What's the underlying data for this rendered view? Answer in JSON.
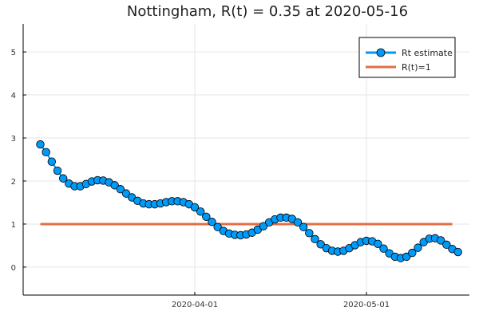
{
  "chart_data": {
    "type": "line",
    "title": "Nottingham, R(t) = 0.35 at 2020-05-16",
    "xlabel": "",
    "ylabel": "",
    "x_start": "2020-03-05",
    "x_end": "2020-05-16",
    "xlim": [
      "2020-03-02",
      "2020-05-19"
    ],
    "ylim": [
      -0.65,
      5.65
    ],
    "yticks": [
      0,
      1,
      2,
      3,
      4,
      5
    ],
    "xticks": [
      "2020-04-01",
      "2020-05-01"
    ],
    "grid": true,
    "legend_position": "top-right",
    "series": [
      {
        "name": "Rt estimate",
        "color": "#009AF9",
        "marker": "circle",
        "values": [
          2.85,
          2.67,
          2.45,
          2.24,
          2.06,
          1.94,
          1.88,
          1.88,
          1.93,
          1.99,
          2.02,
          2.01,
          1.97,
          1.9,
          1.81,
          1.71,
          1.62,
          1.54,
          1.48,
          1.46,
          1.46,
          1.48,
          1.51,
          1.53,
          1.53,
          1.51,
          1.46,
          1.39,
          1.29,
          1.17,
          1.05,
          0.93,
          0.84,
          0.78,
          0.75,
          0.74,
          0.76,
          0.8,
          0.87,
          0.95,
          1.04,
          1.11,
          1.15,
          1.15,
          1.12,
          1.04,
          0.93,
          0.79,
          0.65,
          0.53,
          0.44,
          0.38,
          0.36,
          0.38,
          0.44,
          0.51,
          0.58,
          0.61,
          0.6,
          0.54,
          0.43,
          0.32,
          0.24,
          0.21,
          0.24,
          0.33,
          0.45,
          0.58,
          0.66,
          0.67,
          0.62,
          0.52,
          0.42,
          0.35
        ]
      },
      {
        "name": "R(t)=1",
        "color": "#E26F46",
        "marker": "none",
        "values": [
          1,
          1
        ]
      }
    ]
  }
}
